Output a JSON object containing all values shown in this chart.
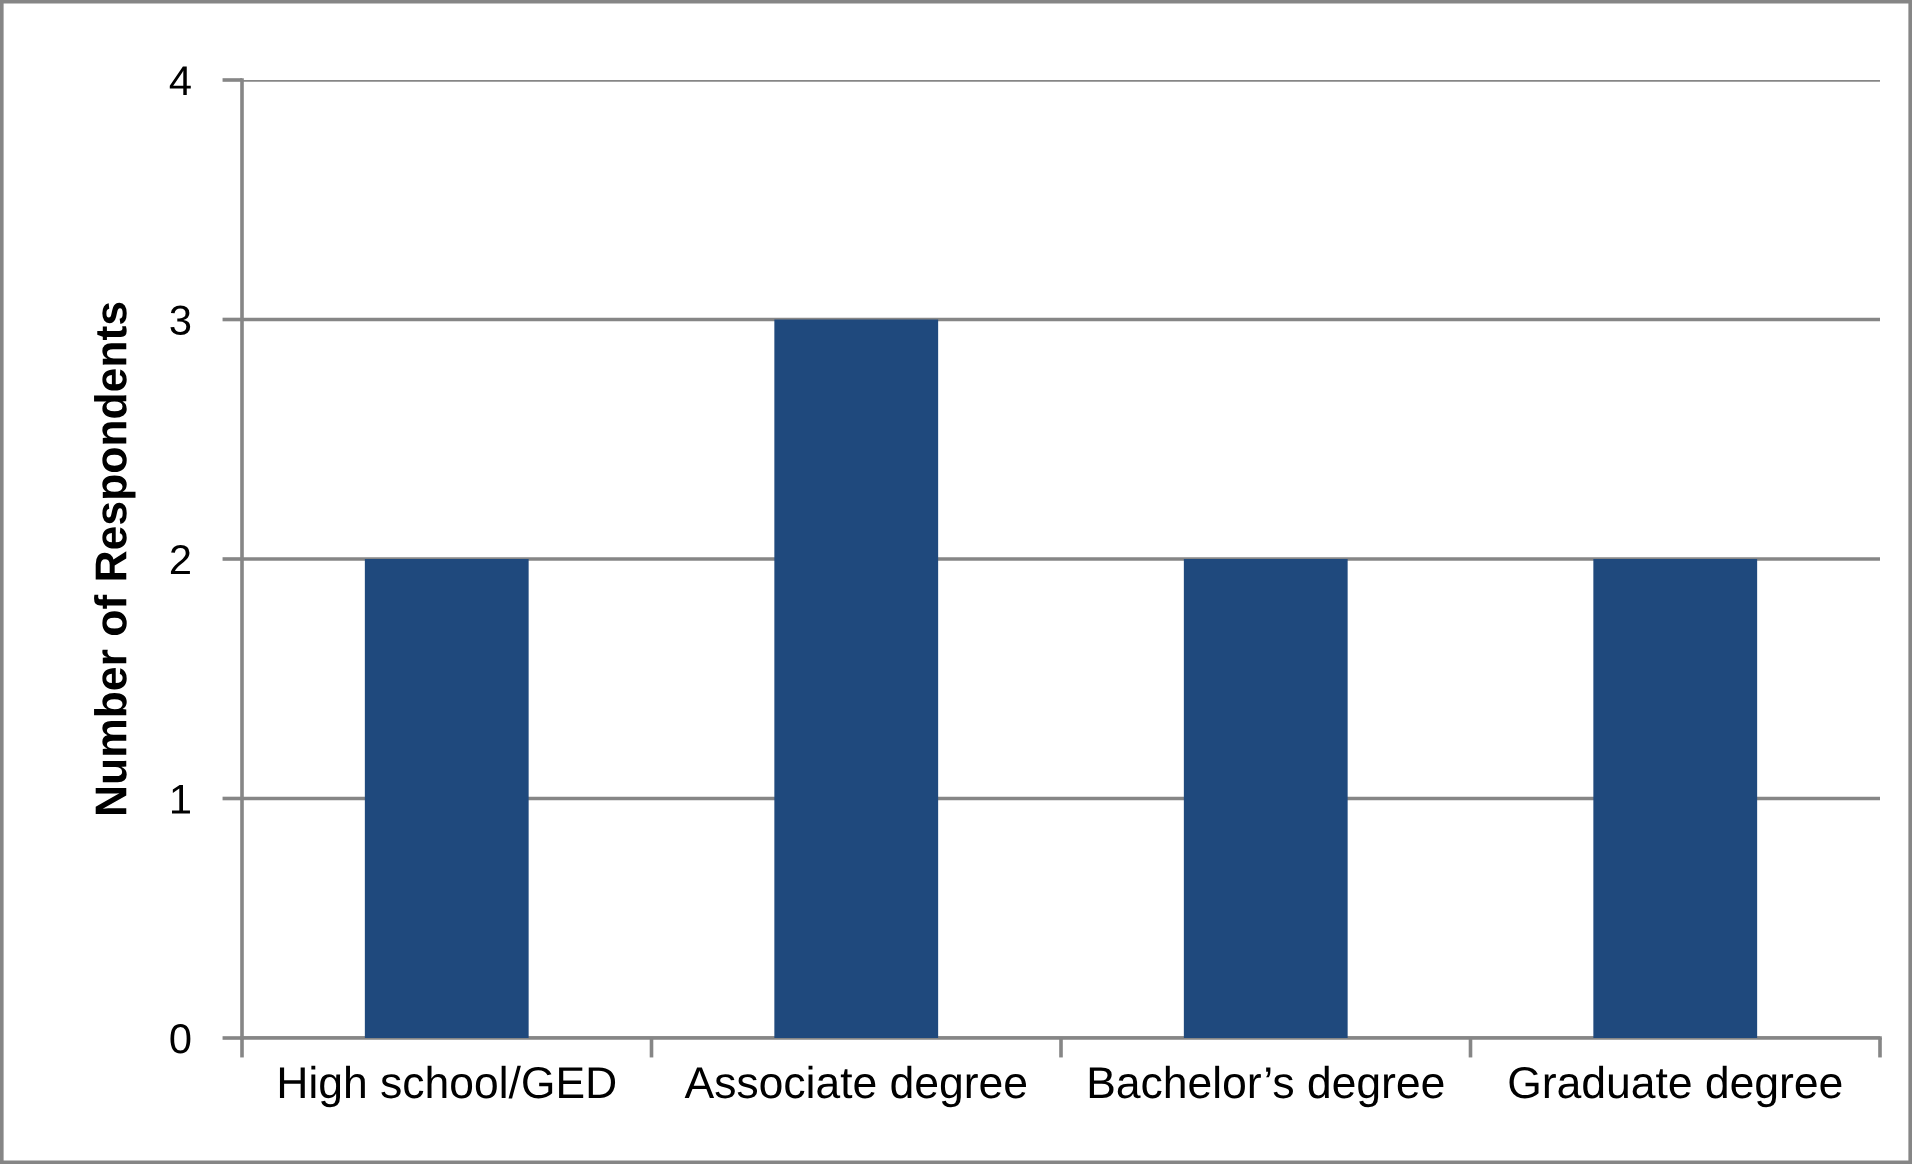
{
  "chart_data": {
    "type": "bar",
    "ylabel": "Number of Respondents",
    "categories": [
      "High school/GED",
      "Associate degree",
      "Bachelor’s degree",
      "Graduate degree"
    ],
    "values": [
      2,
      3,
      2,
      2
    ],
    "color": "#1f497d",
    "ylim": [
      0,
      4
    ],
    "yticks": [
      0,
      1,
      2,
      3,
      4
    ],
    "grid": "y"
  }
}
